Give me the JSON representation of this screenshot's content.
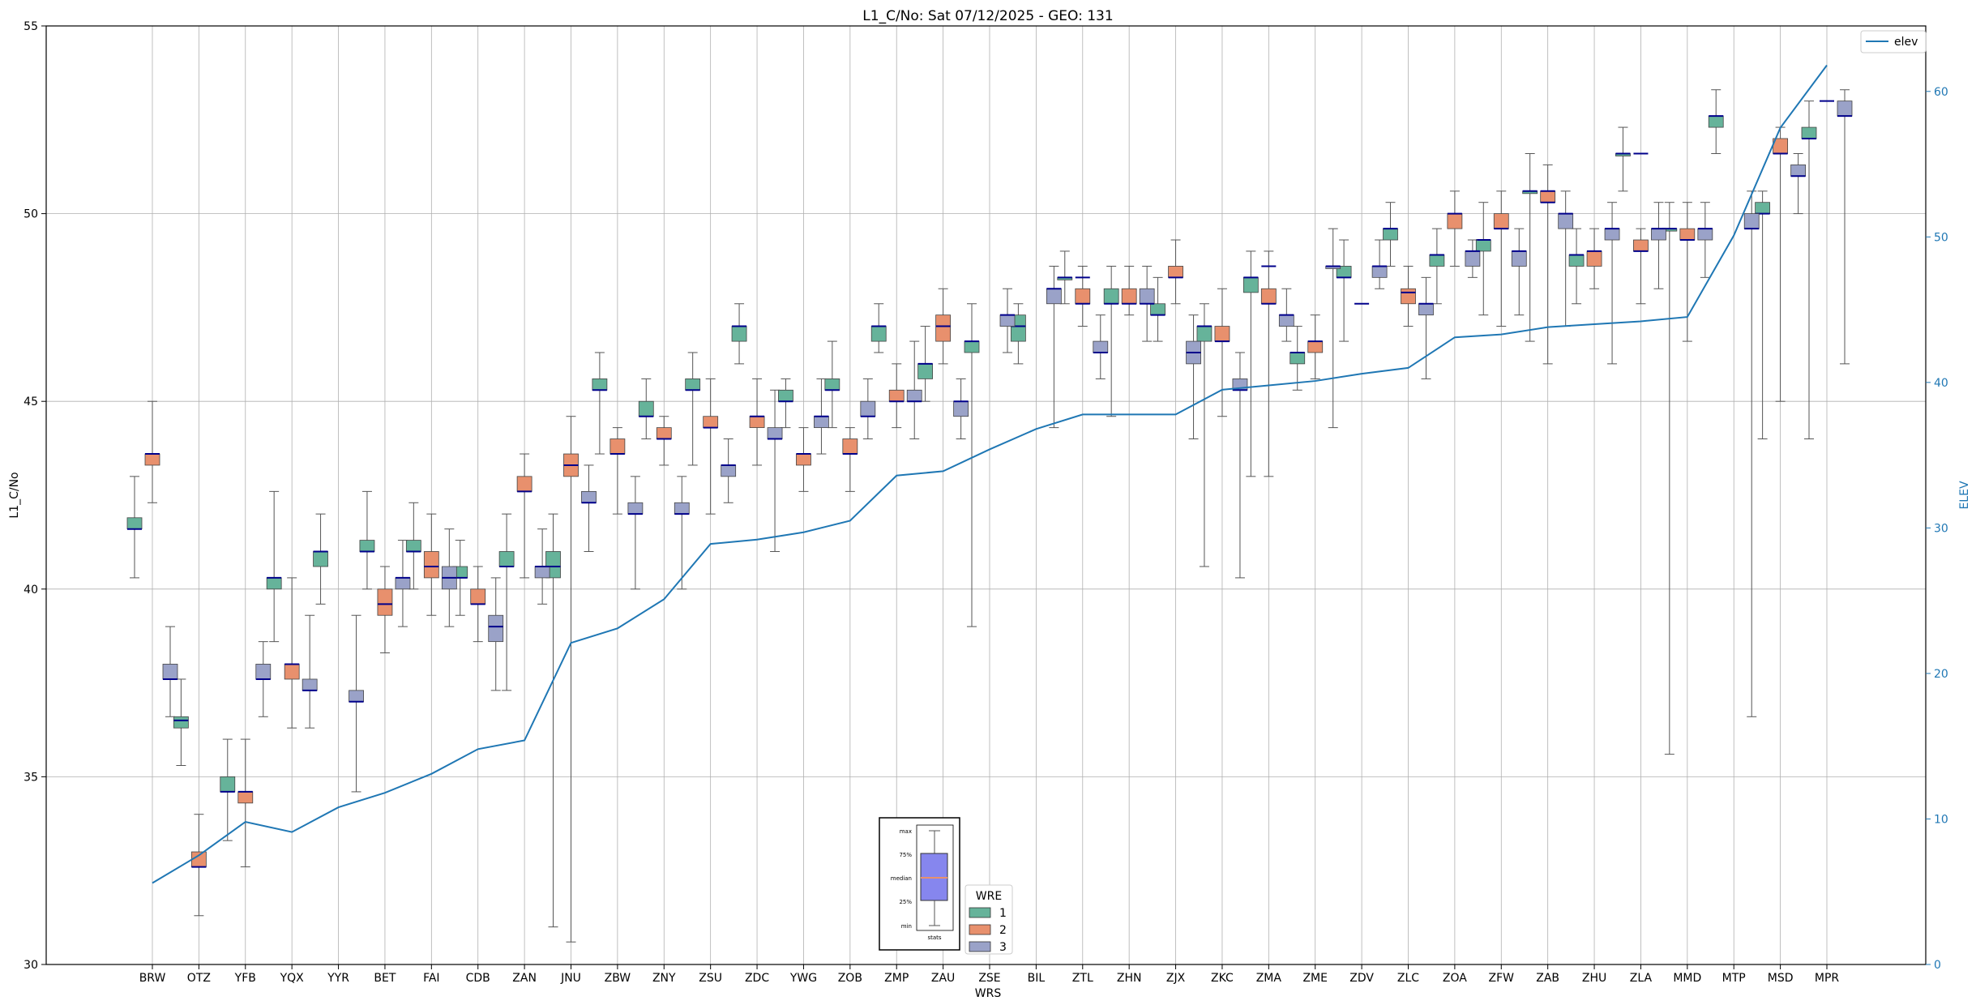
{
  "chart_data": {
    "type": "boxplot",
    "title": "L1_C/No: Sat 07/12/2025 - GEO: 131",
    "xlabel": "WRS",
    "ylabel": "L1_C/No",
    "y2label": "ELEV",
    "ylim": [
      30,
      55
    ],
    "y2lim": [
      0,
      64.5
    ],
    "yticks": [
      30,
      35,
      40,
      45,
      50,
      55
    ],
    "y2ticks": [
      0,
      10,
      20,
      30,
      40,
      50,
      60
    ],
    "grid": true,
    "categories": [
      "BRW",
      "OTZ",
      "YFB",
      "YQX",
      "YYR",
      "BET",
      "FAI",
      "CDB",
      "ZAN",
      "JNU",
      "ZBW",
      "ZNY",
      "ZSU",
      "ZDC",
      "YWG",
      "ZOB",
      "ZMP",
      "ZAU",
      "ZSE",
      "BIL",
      "ZTL",
      "ZHN",
      "ZJX",
      "ZKC",
      "ZMA",
      "ZME",
      "ZDV",
      "ZLC",
      "ZOA",
      "ZFW",
      "ZAB",
      "ZHU",
      "ZLA",
      "MMD",
      "MTP",
      "MSD",
      "MPR"
    ],
    "series": [
      {
        "name": "1",
        "color": "#66b39a",
        "boxes": [
          [
            0,
            40.3,
            41.6,
            41.6,
            41.9,
            43.0
          ],
          [
            1,
            35.3,
            36.3,
            36.5,
            36.6,
            37.6
          ],
          [
            2,
            33.3,
            34.6,
            34.6,
            35.0,
            36.0
          ],
          [
            3,
            38.6,
            40.0,
            40.3,
            40.3,
            42.6
          ],
          [
            4,
            39.6,
            40.6,
            41.0,
            41.0,
            42.0
          ],
          [
            5,
            40.0,
            41.0,
            41.0,
            41.3,
            42.6
          ],
          [
            6,
            40.0,
            41.0,
            41.0,
            41.3,
            42.3
          ],
          [
            7,
            39.3,
            40.3,
            40.3,
            40.6,
            41.3
          ],
          [
            8,
            37.3,
            40.6,
            40.6,
            41.0,
            42.0
          ],
          [
            9,
            31.0,
            40.3,
            40.6,
            41.0,
            42.0
          ],
          [
            10,
            43.6,
            45.3,
            45.3,
            45.6,
            46.3
          ],
          [
            11,
            44.0,
            44.6,
            44.6,
            45.0,
            45.6
          ],
          [
            12,
            43.3,
            45.3,
            45.3,
            45.6,
            46.3
          ],
          [
            13,
            46.0,
            46.6,
            47.0,
            47.0,
            47.6
          ],
          [
            14,
            44.3,
            45.0,
            45.0,
            45.3,
            45.6
          ],
          [
            15,
            44.3,
            45.3,
            45.3,
            45.6,
            46.6
          ],
          [
            16,
            46.3,
            46.6,
            47.0,
            47.0,
            47.6
          ],
          [
            17,
            45.0,
            45.6,
            46.0,
            46.0,
            47.0
          ],
          [
            18,
            39.0,
            46.3,
            46.6,
            46.6,
            47.6
          ],
          [
            19,
            46.0,
            46.6,
            47.0,
            47.3,
            47.6
          ],
          [
            20,
            47.6,
            48.3,
            48.3,
            48.3,
            49.0
          ],
          [
            21,
            44.6,
            47.6,
            47.6,
            48.0,
            48.6
          ],
          [
            22,
            46.6,
            47.3,
            47.3,
            47.6,
            48.3
          ],
          [
            23,
            40.6,
            46.6,
            47.0,
            47.0,
            47.6
          ],
          [
            24,
            43.0,
            47.9,
            48.3,
            48.3,
            49.0
          ],
          [
            25,
            45.3,
            46.0,
            46.3,
            46.3,
            47.0
          ],
          [
            26,
            46.6,
            48.3,
            48.3,
            48.6,
            49.3
          ],
          [
            27,
            48.6,
            49.3,
            49.6,
            49.6,
            50.3
          ],
          [
            28,
            47.6,
            48.6,
            48.9,
            48.9,
            49.6
          ],
          [
            29,
            47.3,
            49.0,
            49.3,
            49.3,
            50.3
          ],
          [
            30,
            46.6,
            50.6,
            50.6,
            50.6,
            51.6
          ],
          [
            31,
            47.6,
            48.6,
            48.9,
            48.9,
            49.6
          ],
          [
            32,
            50.6,
            51.6,
            51.6,
            51.6,
            52.3
          ],
          [
            33,
            35.6,
            49.6,
            49.6,
            49.6,
            50.3
          ],
          [
            34,
            51.6,
            52.3,
            52.6,
            52.6,
            53.3
          ],
          [
            35,
            44.0,
            50.0,
            50.0,
            50.3,
            50.6
          ],
          [
            36,
            44.0,
            52.0,
            52.0,
            52.3,
            53.0
          ]
        ]
      },
      {
        "name": "2",
        "color": "#e8906d",
        "boxes": [
          [
            0,
            42.3,
            43.3,
            43.6,
            43.6,
            45.0
          ],
          [
            1,
            31.3,
            32.6,
            32.6,
            33.0,
            34.0
          ],
          [
            2,
            32.6,
            34.3,
            34.6,
            34.6,
            36.0
          ],
          [
            3,
            36.3,
            37.6,
            38.0,
            38.0,
            40.3
          ],
          [
            5,
            38.3,
            39.3,
            39.6,
            40.0,
            40.6
          ],
          [
            6,
            39.3,
            40.3,
            40.6,
            41.0,
            42.0
          ],
          [
            7,
            38.6,
            39.6,
            39.6,
            40.0,
            40.6
          ],
          [
            8,
            40.3,
            42.6,
            42.6,
            43.0,
            43.6
          ],
          [
            9,
            30.6,
            43.0,
            43.3,
            43.6,
            44.6
          ],
          [
            10,
            42.0,
            43.6,
            43.6,
            44.0,
            44.3
          ],
          [
            11,
            43.3,
            44.0,
            44.0,
            44.3,
            44.6
          ],
          [
            12,
            42.0,
            44.3,
            44.3,
            44.6,
            45.6
          ],
          [
            13,
            43.3,
            44.3,
            44.6,
            44.6,
            45.6
          ],
          [
            14,
            42.6,
            43.3,
            43.6,
            43.6,
            44.3
          ],
          [
            15,
            42.6,
            43.6,
            43.6,
            44.0,
            44.3
          ],
          [
            16,
            44.3,
            45.0,
            45.0,
            45.3,
            46.0
          ],
          [
            17,
            46.0,
            46.6,
            47.0,
            47.3,
            48.0
          ],
          [
            20,
            47.0,
            47.6,
            47.6,
            48.0,
            48.6
          ],
          [
            21,
            47.3,
            47.6,
            47.6,
            48.0,
            48.6
          ],
          [
            22,
            47.6,
            48.3,
            48.3,
            48.6,
            49.3
          ],
          [
            23,
            44.6,
            46.6,
            46.6,
            47.0,
            48.0
          ],
          [
            24,
            43.0,
            47.6,
            47.6,
            48.0,
            49.0
          ],
          [
            25,
            45.6,
            46.3,
            46.6,
            46.6,
            47.3
          ],
          [
            27,
            47.0,
            47.6,
            47.9,
            48.0,
            48.6
          ],
          [
            28,
            48.6,
            49.6,
            50.0,
            50.0,
            50.6
          ],
          [
            29,
            47.0,
            49.6,
            49.6,
            50.0,
            50.6
          ],
          [
            30,
            46.0,
            50.3,
            50.3,
            50.6,
            51.3
          ],
          [
            31,
            48.0,
            48.6,
            49.0,
            49.0,
            49.6
          ],
          [
            32,
            47.6,
            49.0,
            49.0,
            49.3,
            49.6
          ],
          [
            33,
            46.6,
            49.3,
            49.3,
            49.6,
            50.3
          ],
          [
            35,
            45.0,
            51.6,
            51.6,
            52.0,
            52.3
          ]
        ]
      },
      {
        "name": "3",
        "color": "#9aa2c8",
        "boxes": [
          [
            0,
            36.6,
            37.6,
            37.6,
            38.0,
            39.0
          ],
          [
            2,
            36.6,
            37.6,
            37.6,
            38.0,
            38.6
          ],
          [
            3,
            36.3,
            37.3,
            37.3,
            37.6,
            39.3
          ],
          [
            4,
            34.6,
            37.0,
            37.0,
            37.3,
            39.3
          ],
          [
            5,
            39.0,
            40.0,
            40.3,
            40.3,
            41.3
          ],
          [
            6,
            39.0,
            40.0,
            40.3,
            40.6,
            41.6
          ],
          [
            7,
            37.3,
            38.6,
            39.0,
            39.3,
            40.3
          ],
          [
            8,
            39.6,
            40.3,
            40.6,
            40.6,
            41.6
          ],
          [
            9,
            41.0,
            42.3,
            42.3,
            42.6,
            43.3
          ],
          [
            10,
            40.0,
            42.0,
            42.0,
            42.3,
            43.0
          ],
          [
            11,
            40.0,
            42.0,
            42.0,
            42.3,
            43.0
          ],
          [
            12,
            42.3,
            43.0,
            43.3,
            43.3,
            44.0
          ],
          [
            13,
            41.0,
            44.0,
            44.0,
            44.3,
            45.3
          ],
          [
            14,
            43.6,
            44.3,
            44.6,
            44.6,
            45.6
          ],
          [
            15,
            44.0,
            44.6,
            44.6,
            45.0,
            45.6
          ],
          [
            16,
            44.0,
            45.0,
            45.0,
            45.3,
            46.6
          ],
          [
            17,
            44.0,
            44.6,
            45.0,
            45.0,
            45.6
          ],
          [
            18,
            46.3,
            47.0,
            47.3,
            47.3,
            48.0
          ],
          [
            19,
            44.3,
            47.6,
            48.0,
            48.0,
            48.6
          ],
          [
            20,
            45.6,
            46.3,
            46.3,
            46.6,
            47.3
          ],
          [
            21,
            46.6,
            47.6,
            47.6,
            48.0,
            48.6
          ],
          [
            22,
            44.0,
            46.0,
            46.3,
            46.6,
            47.3
          ],
          [
            23,
            40.3,
            45.3,
            45.3,
            45.6,
            46.3
          ],
          [
            24,
            46.6,
            47.0,
            47.3,
            47.3,
            48.0
          ],
          [
            25,
            44.3,
            48.6,
            48.6,
            48.6,
            49.6
          ],
          [
            26,
            48.0,
            48.3,
            48.6,
            48.6,
            49.3
          ],
          [
            27,
            45.6,
            47.3,
            47.6,
            47.6,
            48.3
          ],
          [
            28,
            48.3,
            48.6,
            49.0,
            49.0,
            49.3
          ],
          [
            29,
            47.3,
            48.6,
            49.0,
            49.0,
            49.6
          ],
          [
            30,
            47.0,
            49.6,
            50.0,
            50.0,
            50.6
          ],
          [
            31,
            46.0,
            49.3,
            49.6,
            49.6,
            50.3
          ],
          [
            32,
            48.0,
            49.3,
            49.6,
            49.6,
            50.3
          ],
          [
            33,
            48.3,
            49.3,
            49.6,
            49.6,
            50.3
          ],
          [
            34,
            36.6,
            49.6,
            49.6,
            50.0,
            50.6
          ],
          [
            35,
            50.0,
            51.0,
            51.0,
            51.3,
            51.6
          ],
          [
            36,
            46.0,
            52.6,
            52.6,
            53.0,
            53.3
          ]
        ]
      }
    ],
    "single_markers": [
      {
        "category": 20,
        "value": 48.3
      },
      {
        "category": 24,
        "value": 48.6
      },
      {
        "category": 26,
        "value": 47.6
      },
      {
        "category": 30,
        "value": 50.6
      },
      {
        "category": 32,
        "value": 51.6
      },
      {
        "category": 36,
        "value": 53.0
      }
    ],
    "line_series": {
      "name": "elev",
      "color": "#1f77b4",
      "values": [
        5.6,
        7.5,
        9.8,
        9.1,
        10.8,
        11.8,
        13.1,
        14.8,
        15.4,
        22.1,
        23.1,
        25.1,
        28.9,
        29.2,
        29.7,
        30.5,
        33.6,
        33.9,
        35.4,
        36.8,
        37.8,
        37.8,
        37.8,
        39.5,
        39.8,
        40.1,
        40.6,
        41.0,
        43.1,
        43.3,
        43.8,
        44.0,
        44.2,
        44.5,
        50.1,
        57.5,
        61.8
      ]
    },
    "legend_series": {
      "placement": "top-right",
      "entries": [
        "elev"
      ]
    },
    "legend_wre": {
      "title": "WRE",
      "placement": "bottom-center",
      "entries": [
        "1",
        "2",
        "3"
      ]
    },
    "legend_inset": {
      "labels": [
        "max",
        "75%",
        "median",
        "25%",
        "min",
        "stats"
      ]
    }
  }
}
